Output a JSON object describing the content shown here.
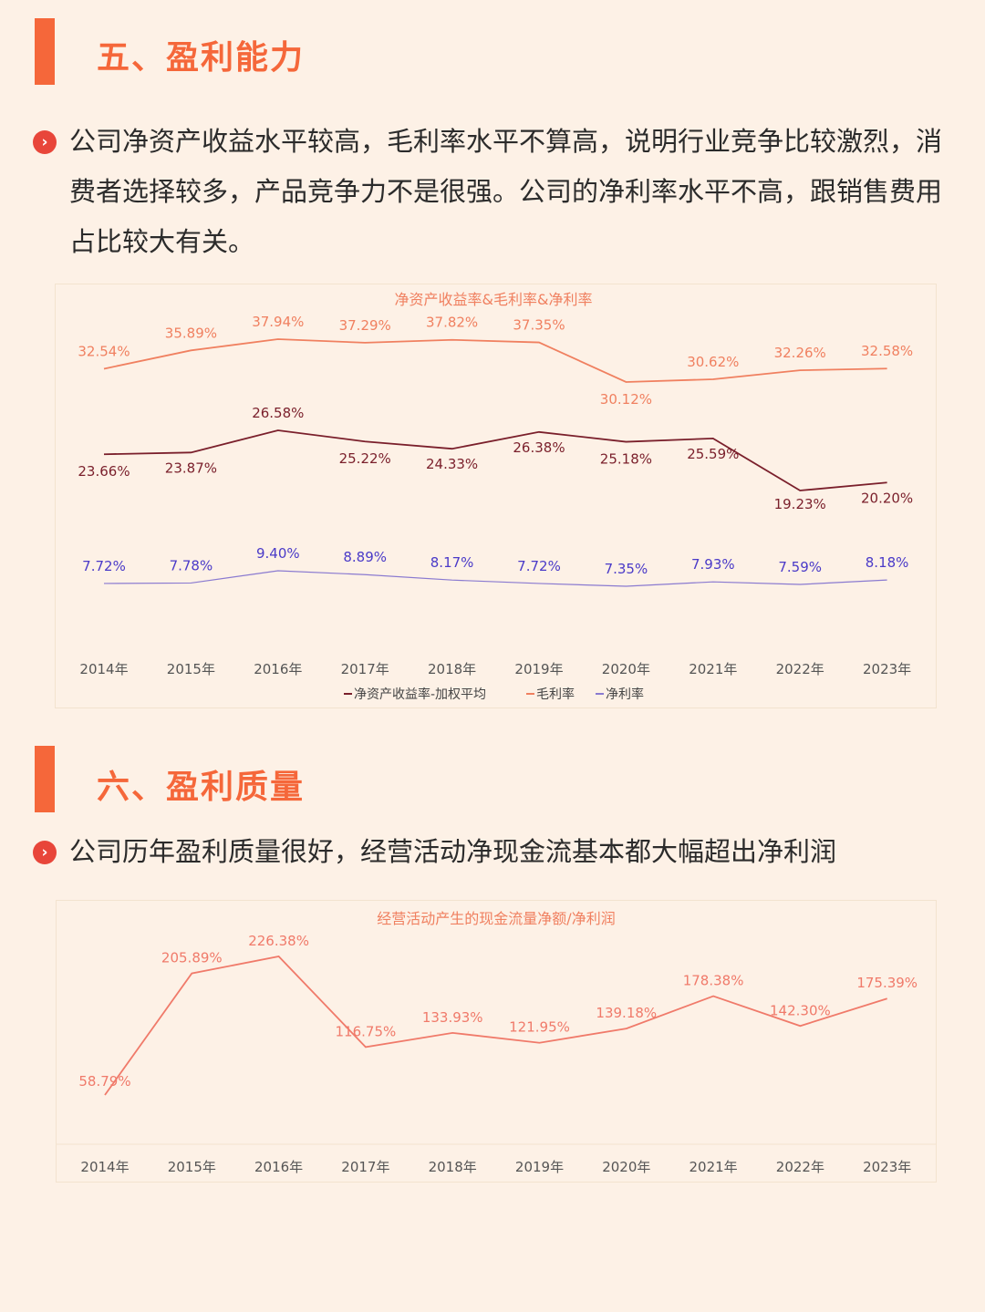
{
  "section5": {
    "title": "五、盈利能力",
    "text": "公司净资产收益水平较高，毛利率水平不算高，说明行业竞争比较激烈，消费者选择较多，产品竞争力不是很强。公司的净利率水平不高，跟销售费用占比较大有关。"
  },
  "section6": {
    "title": "六、盈利质量",
    "text": "公司历年盈利质量很好，经营活动净现金流基本都大幅超出净利润"
  },
  "bullet_icon": "chevron-right-circle-icon",
  "colors": {
    "accent": "#f5673a",
    "roe": "#f08060",
    "gross": "#7a1f2b",
    "net": "#8a7ad0",
    "net_label": "#4a3ac8",
    "cash": "#f07a6a"
  },
  "chart_data": [
    {
      "type": "line",
      "title": "净资产收益率&毛利率&净利率",
      "categories": [
        "2014年",
        "2015年",
        "2016年",
        "2017年",
        "2018年",
        "2019年",
        "2020年",
        "2021年",
        "2022年",
        "2023年"
      ],
      "series": [
        {
          "name": "净资产收益率-加权平均",
          "values": [
            32.54,
            35.89,
            37.94,
            37.29,
            37.82,
            37.35,
            30.12,
            30.62,
            32.26,
            32.58
          ],
          "labels": [
            "32.54%",
            "35.89%",
            "37.94%",
            "37.29%",
            "37.82%",
            "37.35%",
            "30.12%",
            "30.62%",
            "32.26%",
            "32.58%"
          ]
        },
        {
          "name": "毛利率",
          "values": [
            23.66,
            23.87,
            26.58,
            25.22,
            24.33,
            26.38,
            25.18,
            25.59,
            19.23,
            20.2
          ],
          "labels": [
            "23.66%",
            "23.87%",
            "26.58%",
            "25.22%",
            "24.33%",
            "26.38%",
            "25.18%",
            "25.59%",
            "19.23%",
            "20.20%"
          ]
        },
        {
          "name": "净利率",
          "values": [
            7.72,
            7.78,
            9.4,
            8.89,
            8.17,
            7.72,
            7.35,
            7.93,
            7.59,
            8.18
          ],
          "labels": [
            "7.72%",
            "7.78%",
            "9.40%",
            "8.89%",
            "8.17%",
            "7.72%",
            "7.35%",
            "7.93%",
            "7.59%",
            "8.18%"
          ]
        }
      ],
      "legend": "bottom",
      "grid": false
    },
    {
      "type": "line",
      "title": "经营活动产生的现金流量净额/净利润",
      "categories": [
        "2014年",
        "2015年",
        "2016年",
        "2017年",
        "2018年",
        "2019年",
        "2020年",
        "2021年",
        "2022年",
        "2023年"
      ],
      "series": [
        {
          "values": [
            58.79,
            205.89,
            226.38,
            116.75,
            133.93,
            121.95,
            139.18,
            178.38,
            142.3,
            175.39
          ],
          "labels": [
            "58.79%",
            "205.89%",
            "226.38%",
            "116.75%",
            "133.93%",
            "121.95%",
            "139.18%",
            "178.38%",
            "142.30%",
            "175.39%"
          ]
        }
      ],
      "legend": "none",
      "grid": false
    }
  ]
}
